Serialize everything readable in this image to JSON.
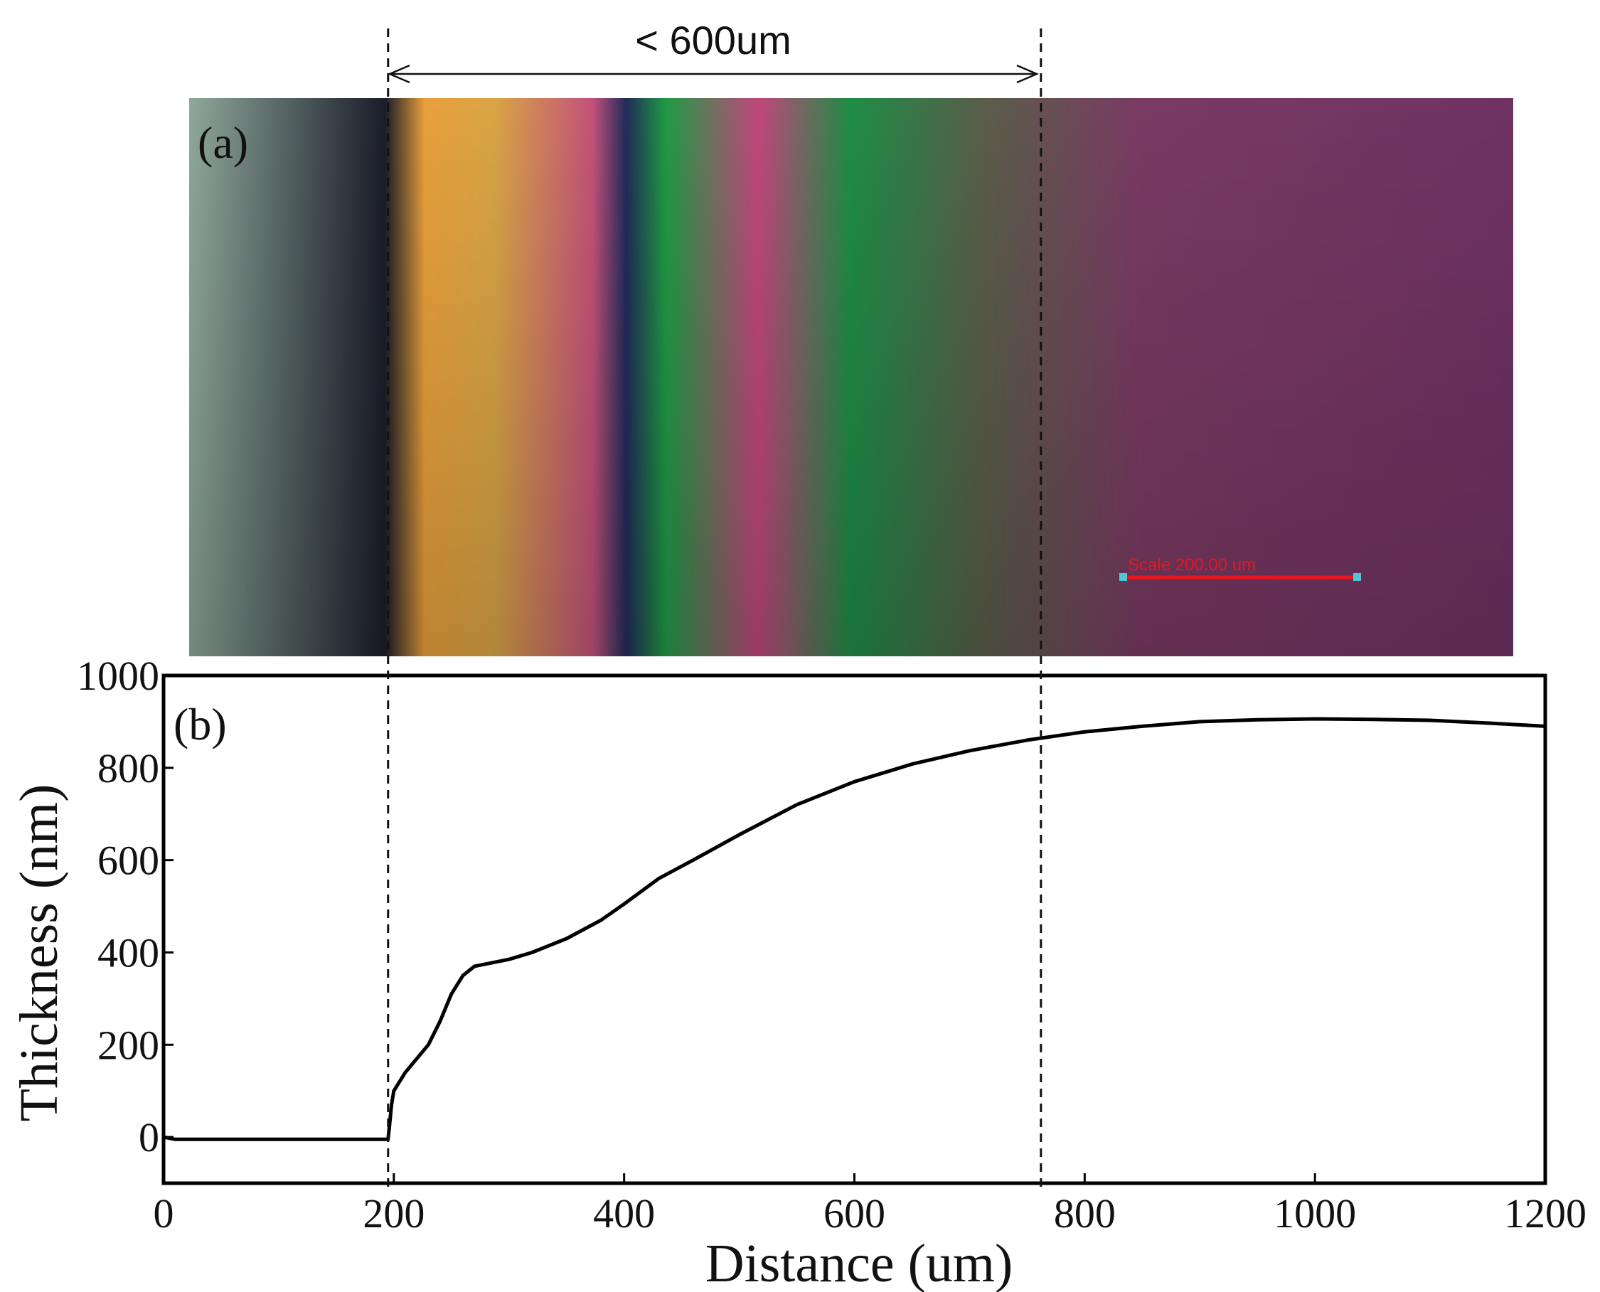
{
  "panel_a": {
    "label": "(a)",
    "scale_text": "Scale 200.00 um",
    "span_label": "< 600um",
    "band_colors": [
      "#8fa89b",
      "#1a1d2a",
      "#e8a03c",
      "#d9a545",
      "#c2517a",
      "#222a5a",
      "#1f9a45",
      "#c0477a",
      "#1e8c46",
      "#5a5d4a",
      "#7a3a63",
      "#6f3263"
    ]
  },
  "chart_data": {
    "type": "line",
    "panel_label": "(b)",
    "title": "",
    "xlabel": "Distance (um)",
    "ylabel": "Thickness (nm)",
    "xlim": [
      0,
      1200
    ],
    "ylim": [
      -100,
      1000
    ],
    "xticks": [
      0,
      200,
      400,
      600,
      800,
      1000,
      1200
    ],
    "yticks": [
      0,
      200,
      400,
      600,
      800,
      1000
    ],
    "grid": false,
    "series": [
      {
        "x": [
          0,
          10,
          50,
          100,
          150,
          195,
          196,
          198,
          200,
          205,
          210,
          220,
          230,
          240,
          250,
          260,
          270,
          280,
          290,
          300,
          320,
          350,
          380,
          400,
          430,
          460,
          500,
          550,
          600,
          650,
          700,
          750,
          800,
          850,
          900,
          950,
          1000,
          1050,
          1100,
          1150,
          1200
        ],
        "y": [
          0,
          -5,
          -5,
          -5,
          -5,
          -5,
          20,
          70,
          100,
          120,
          140,
          170,
          200,
          250,
          310,
          350,
          370,
          375,
          380,
          385,
          400,
          430,
          470,
          505,
          560,
          600,
          655,
          720,
          770,
          808,
          837,
          860,
          878,
          890,
          900,
          904,
          906,
          905,
          903,
          897,
          890
        ]
      }
    ],
    "markers": [
      {
        "x": 195
      },
      {
        "x": 762
      }
    ]
  }
}
